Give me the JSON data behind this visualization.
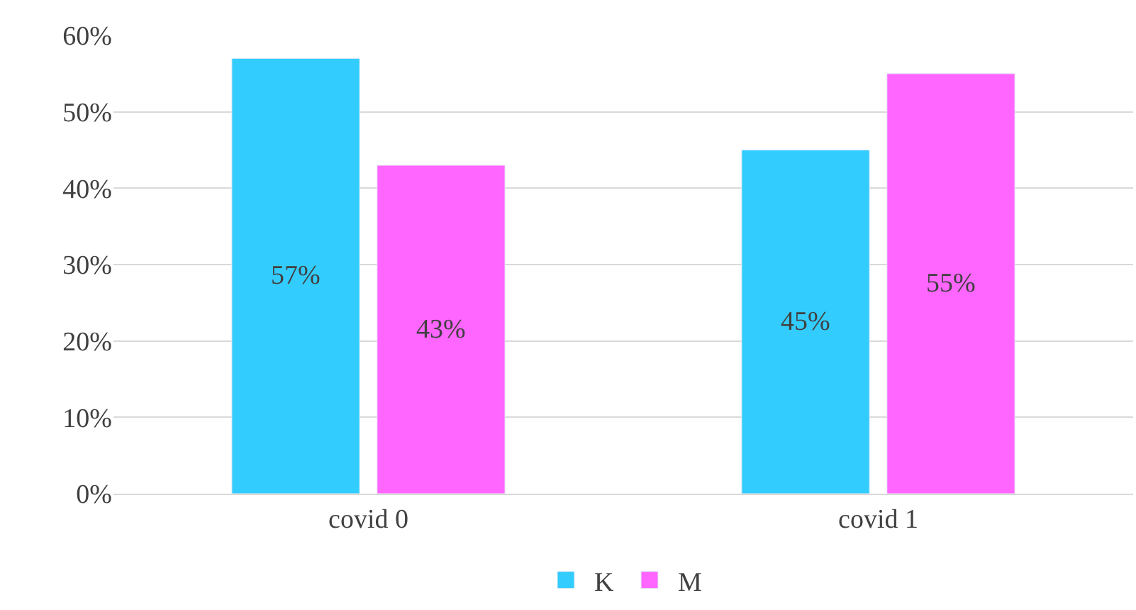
{
  "chart_data": {
    "type": "bar",
    "categories": [
      "covid 0",
      "covid 1"
    ],
    "series": [
      {
        "name": "K",
        "color": "#33ccff",
        "values": [
          57,
          45
        ],
        "value_labels": [
          "57%",
          "45%"
        ]
      },
      {
        "name": "M",
        "color": "#ff66ff",
        "values": [
          43,
          55
        ],
        "value_labels": [
          "43%",
          "55%"
        ]
      }
    ],
    "ylim": [
      0,
      60
    ],
    "yticks": [
      {
        "value": 0,
        "label": "0%"
      },
      {
        "value": 10,
        "label": "10%"
      },
      {
        "value": 20,
        "label": "20%"
      },
      {
        "value": 30,
        "label": "30%"
      },
      {
        "value": 40,
        "label": "40%"
      },
      {
        "value": 50,
        "label": "50%"
      },
      {
        "value": 60,
        "label": "60%"
      }
    ],
    "grid": "y",
    "legend": "bottom"
  }
}
